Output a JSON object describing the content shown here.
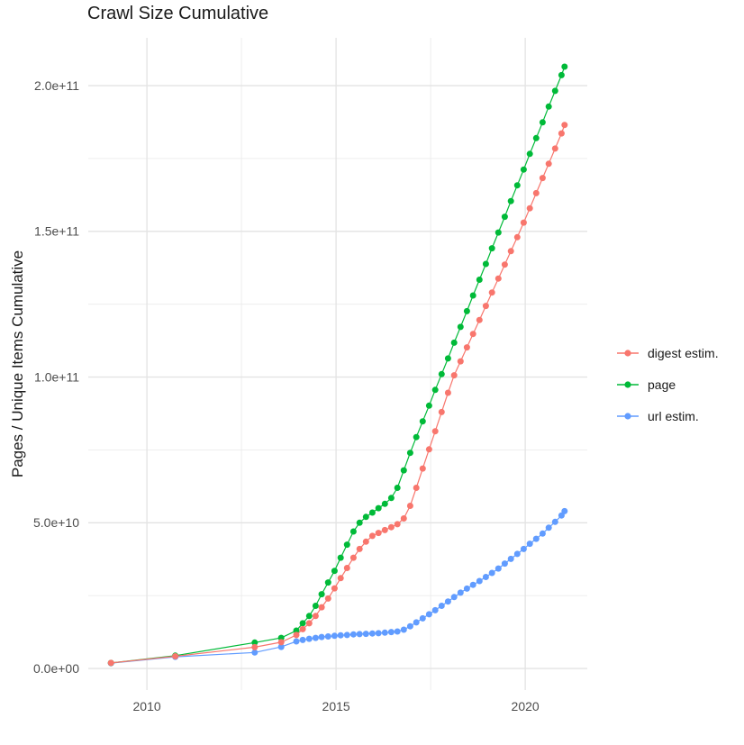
{
  "chart_data": {
    "type": "line",
    "marker": "point",
    "title": "Crawl Size Cumulative",
    "xlabel": "",
    "ylabel": "Pages / Unique Items Cumulative",
    "value_unit": "1e9",
    "xlim": [
      2008.45,
      2021.64
    ],
    "ylim_e9": [
      -7.4,
      216.4
    ],
    "grid": true,
    "legend_position": "right",
    "x_ticks": [
      {
        "value": 2010,
        "label": "2010"
      },
      {
        "value": 2015,
        "label": "2015"
      },
      {
        "value": 2020,
        "label": "2020"
      }
    ],
    "x_minor_ticks": [
      2012.5,
      2017.5
    ],
    "y_ticks": [
      {
        "value_e9": 0,
        "label": "0.0e+00"
      },
      {
        "value_e9": 50,
        "label": "5.0e+10"
      },
      {
        "value_e9": 100,
        "label": "1.0e+11"
      },
      {
        "value_e9": 150,
        "label": "1.5e+11"
      },
      {
        "value_e9": 200,
        "label": "2.0e+11"
      }
    ],
    "y_minor_ticks_e9": [
      25,
      75,
      125,
      175
    ],
    "series": [
      {
        "name": "digest estim.",
        "color": "#F8766D",
        "points": [
          [
            2009.05,
            1.9
          ],
          [
            2010.75,
            4.2
          ],
          [
            2012.85,
            7.3
          ],
          [
            2013.55,
            9.0
          ],
          [
            2013.95,
            11.5
          ],
          [
            2014.12,
            13.5
          ],
          [
            2014.29,
            15.5
          ],
          [
            2014.46,
            18.0
          ],
          [
            2014.62,
            21.0
          ],
          [
            2014.79,
            24.0
          ],
          [
            2014.96,
            27.5
          ],
          [
            2015.12,
            31.0
          ],
          [
            2015.29,
            34.5
          ],
          [
            2015.46,
            38.0
          ],
          [
            2015.62,
            41.0
          ],
          [
            2015.79,
            43.5
          ],
          [
            2015.96,
            45.5
          ],
          [
            2016.12,
            46.5
          ],
          [
            2016.29,
            47.5
          ],
          [
            2016.46,
            48.5
          ],
          [
            2016.62,
            49.5
          ],
          [
            2016.79,
            51.5
          ],
          [
            2016.96,
            55.8
          ],
          [
            2017.12,
            62.0
          ],
          [
            2017.29,
            68.6
          ],
          [
            2017.46,
            75.2
          ],
          [
            2017.62,
            81.4
          ],
          [
            2017.79,
            88.0
          ],
          [
            2017.96,
            94.6
          ],
          [
            2018.12,
            100.6
          ],
          [
            2018.29,
            105.4
          ],
          [
            2018.46,
            110.2
          ],
          [
            2018.62,
            114.8
          ],
          [
            2018.79,
            119.6
          ],
          [
            2018.96,
            124.4
          ],
          [
            2019.12,
            129.0
          ],
          [
            2019.29,
            133.8
          ],
          [
            2019.46,
            138.6
          ],
          [
            2019.62,
            143.2
          ],
          [
            2019.79,
            148.0
          ],
          [
            2019.96,
            153.0
          ],
          [
            2020.12,
            157.9
          ],
          [
            2020.29,
            163.1
          ],
          [
            2020.46,
            168.3
          ],
          [
            2020.62,
            173.2
          ],
          [
            2020.79,
            178.4
          ],
          [
            2020.96,
            183.6
          ],
          [
            2021.04,
            186.5
          ]
        ]
      },
      {
        "name": "page",
        "color": "#00BA38",
        "points": [
          [
            2009.05,
            1.9
          ],
          [
            2010.75,
            4.4
          ],
          [
            2012.85,
            8.9
          ],
          [
            2013.55,
            10.5
          ],
          [
            2013.95,
            13.0
          ],
          [
            2014.12,
            15.5
          ],
          [
            2014.29,
            18.0
          ],
          [
            2014.46,
            21.5
          ],
          [
            2014.62,
            25.5
          ],
          [
            2014.79,
            29.5
          ],
          [
            2014.96,
            33.5
          ],
          [
            2015.12,
            38.0
          ],
          [
            2015.29,
            42.5
          ],
          [
            2015.46,
            47.0
          ],
          [
            2015.62,
            50.0
          ],
          [
            2015.79,
            52.0
          ],
          [
            2015.96,
            53.5
          ],
          [
            2016.12,
            55.0
          ],
          [
            2016.29,
            56.5
          ],
          [
            2016.46,
            58.5
          ],
          [
            2016.62,
            62.0
          ],
          [
            2016.79,
            68.0
          ],
          [
            2016.96,
            74.0
          ],
          [
            2017.12,
            79.4
          ],
          [
            2017.29,
            84.8
          ],
          [
            2017.46,
            90.2
          ],
          [
            2017.62,
            95.6
          ],
          [
            2017.79,
            101.0
          ],
          [
            2017.96,
            106.4
          ],
          [
            2018.12,
            111.8
          ],
          [
            2018.29,
            117.2
          ],
          [
            2018.46,
            122.6
          ],
          [
            2018.62,
            128.0
          ],
          [
            2018.79,
            133.4
          ],
          [
            2018.96,
            138.8
          ],
          [
            2019.12,
            144.2
          ],
          [
            2019.29,
            149.6
          ],
          [
            2019.46,
            155.0
          ],
          [
            2019.62,
            160.4
          ],
          [
            2019.79,
            165.8
          ],
          [
            2019.96,
            171.2
          ],
          [
            2020.12,
            176.6
          ],
          [
            2020.29,
            182.0
          ],
          [
            2020.46,
            187.4
          ],
          [
            2020.62,
            192.8
          ],
          [
            2020.79,
            198.2
          ],
          [
            2020.96,
            203.6
          ],
          [
            2021.04,
            206.5
          ]
        ]
      },
      {
        "name": "url estim.",
        "color": "#619CFF",
        "points": [
          [
            2009.05,
            1.8
          ],
          [
            2010.75,
            4.0
          ],
          [
            2012.85,
            5.5
          ],
          [
            2013.55,
            7.4
          ],
          [
            2013.95,
            9.3
          ],
          [
            2014.12,
            9.8
          ],
          [
            2014.29,
            10.2
          ],
          [
            2014.46,
            10.5
          ],
          [
            2014.62,
            10.8
          ],
          [
            2014.79,
            11.0
          ],
          [
            2014.96,
            11.2
          ],
          [
            2015.12,
            11.4
          ],
          [
            2015.29,
            11.5
          ],
          [
            2015.46,
            11.7
          ],
          [
            2015.62,
            11.8
          ],
          [
            2015.79,
            11.9
          ],
          [
            2015.96,
            12.0
          ],
          [
            2016.12,
            12.1
          ],
          [
            2016.29,
            12.3
          ],
          [
            2016.46,
            12.5
          ],
          [
            2016.62,
            12.7
          ],
          [
            2016.79,
            13.3
          ],
          [
            2016.96,
            14.5
          ],
          [
            2017.12,
            15.8
          ],
          [
            2017.29,
            17.2
          ],
          [
            2017.46,
            18.6
          ],
          [
            2017.62,
            20.0
          ],
          [
            2017.79,
            21.5
          ],
          [
            2017.96,
            23.0
          ],
          [
            2018.12,
            24.5
          ],
          [
            2018.29,
            26.0
          ],
          [
            2018.46,
            27.4
          ],
          [
            2018.62,
            28.7
          ],
          [
            2018.79,
            30.0
          ],
          [
            2018.96,
            31.4
          ],
          [
            2019.12,
            32.8
          ],
          [
            2019.29,
            34.3
          ],
          [
            2019.46,
            36.0
          ],
          [
            2019.62,
            37.6
          ],
          [
            2019.79,
            39.3
          ],
          [
            2019.96,
            41.0
          ],
          [
            2020.12,
            42.8
          ],
          [
            2020.29,
            44.5
          ],
          [
            2020.46,
            46.3
          ],
          [
            2020.62,
            48.3
          ],
          [
            2020.79,
            50.3
          ],
          [
            2020.96,
            52.5
          ],
          [
            2021.04,
            54.0
          ]
        ]
      }
    ]
  }
}
